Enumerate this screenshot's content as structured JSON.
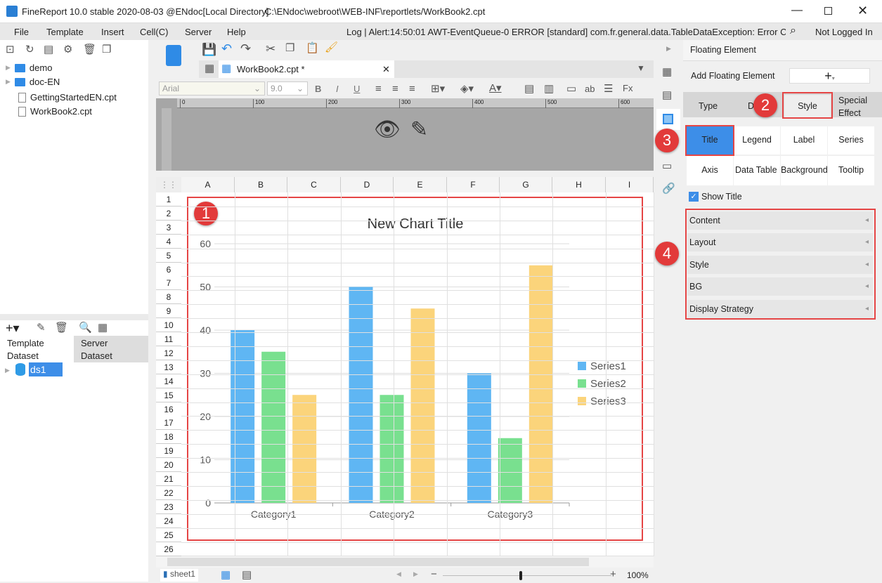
{
  "window": {
    "title": "FineReport 10.0 stable 2020-08-03 @ENdoc[Local Directory]",
    "path": "C:\\ENdoc\\webroot\\WEB-INF\\reportlets/WorkBook2.cpt"
  },
  "menu": [
    "File",
    "Template",
    "Insert",
    "Cell(C)",
    "Server",
    "Help"
  ],
  "log": "Log | Alert:14:50:01 AWT-EventQueue-0 ERROR [standard] com.fr.general.data.TableDataException: Error C...",
  "login": "Not Logged In",
  "tree": [
    {
      "label": "demo",
      "type": "folder"
    },
    {
      "label": "doc-EN",
      "type": "folder"
    },
    {
      "label": "GettingStartedEN.cpt",
      "type": "file"
    },
    {
      "label": "WorkBook2.cpt",
      "type": "file"
    }
  ],
  "dataset_tabs": [
    "Template Dataset",
    "Server Dataset"
  ],
  "datasets": [
    "ds1"
  ],
  "editor_tab": "WorkBook2.cpt *",
  "font": {
    "family": "Arial",
    "size": "9.0"
  },
  "ruler": [
    "0",
    "100",
    "200",
    "300",
    "400",
    "500",
    "600"
  ],
  "columns": [
    "A",
    "B",
    "C",
    "D",
    "E",
    "F",
    "G",
    "H",
    "I"
  ],
  "rows": [
    "1",
    "2",
    "3",
    "4",
    "5",
    "6",
    "7",
    "8",
    "9",
    "10",
    "11",
    "12",
    "13",
    "14",
    "15",
    "16",
    "17",
    "18",
    "19",
    "20",
    "21",
    "22",
    "23",
    "24",
    "25",
    "26"
  ],
  "sheet": "sheet1",
  "zoom": "100%",
  "chart_data": {
    "type": "bar",
    "title": "New Chart Title",
    "categories": [
      "Category1",
      "Category2",
      "Category3"
    ],
    "series": [
      {
        "name": "Series1",
        "values": [
          40,
          50,
          30
        ],
        "color": "#5fb6f3"
      },
      {
        "name": "Series2",
        "values": [
          35,
          25,
          15
        ],
        "color": "#79e08f"
      },
      {
        "name": "Series3",
        "values": [
          25,
          45,
          55
        ],
        "color": "#fbd47b"
      }
    ],
    "ylim": [
      0,
      60
    ],
    "yticks": [
      "0",
      "10",
      "20",
      "30",
      "40",
      "50",
      "60"
    ],
    "grid": true,
    "legend": "right"
  },
  "panel": {
    "title": "Floating Element",
    "add_label": "Add Floating Element",
    "tabs": [
      "Type",
      "D",
      "Style",
      "Special Effect"
    ],
    "style_tabs": [
      "Title",
      "Legend",
      "Label",
      "Series",
      "Axis",
      "Data Table",
      "Background",
      "Tooltip"
    ],
    "show_title": "Show Title",
    "show_title_checked": true,
    "sections": [
      "Content",
      "Layout",
      "Style",
      "BG",
      "Display Strategy"
    ]
  },
  "badges": [
    "1",
    "2",
    "3",
    "4"
  ],
  "accent": "#3d8ee8"
}
